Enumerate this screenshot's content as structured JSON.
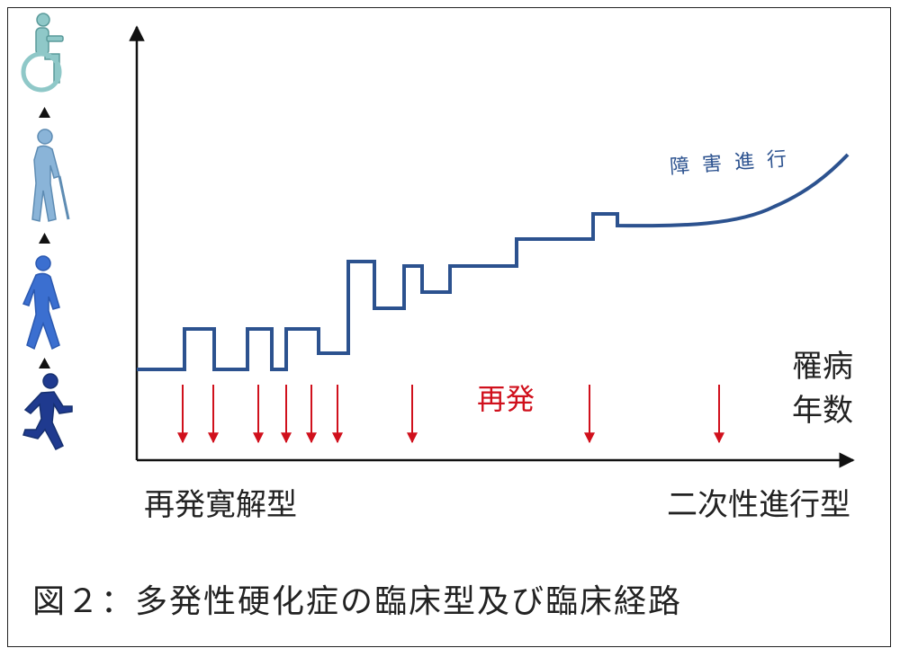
{
  "labels": {
    "progression": "障害進行",
    "relapse": "再発",
    "illness_years_line1": "罹病",
    "illness_years_line2": "年数",
    "left_type": "再発寛解型",
    "right_type": "二次性進行型",
    "caption": "図２：多発性硬化症の臨床型及び臨床経路"
  },
  "icons": [
    {
      "name": "wheelchair-icon",
      "color": "#8fc8c8"
    },
    {
      "name": "cane-walker-icon",
      "color": "#8ab4d8"
    },
    {
      "name": "walking-person-icon",
      "color": "#3b6fd0"
    },
    {
      "name": "running-person-icon",
      "color": "#1f3a8f"
    }
  ],
  "colors": {
    "disability_line": "#2c528f",
    "relapse_arrow": "#d0101c",
    "axis": "#111111"
  },
  "relapse_arrow_count": 9
}
